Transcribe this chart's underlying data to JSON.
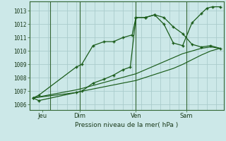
{
  "background_color": "#cce8e8",
  "grid_color": "#aacccc",
  "line_color": "#1a5c1a",
  "title": "Pression niveau de la mer( hPa )",
  "ylabel_ticks": [
    1006,
    1007,
    1008,
    1009,
    1010,
    1011,
    1012,
    1013
  ],
  "ylim": [
    1005.6,
    1013.7
  ],
  "xlim": [
    -0.2,
    10.2
  ],
  "day_labels": [
    "Jeu",
    "Dim",
    "Ven",
    "Sam"
  ],
  "day_positions": [
    0.5,
    2.5,
    5.5,
    8.2
  ],
  "day_vlines": [
    0.9,
    2.5,
    5.5,
    8.2
  ],
  "series1_x": [
    0.0,
    0.3,
    2.3,
    2.6,
    3.2,
    3.8,
    4.3,
    4.8,
    5.3,
    5.5,
    6.0,
    6.5,
    7.0,
    7.5,
    8.0,
    8.5,
    9.0,
    9.5,
    10.0
  ],
  "series1_y": [
    1006.5,
    1006.7,
    1008.8,
    1009.0,
    1010.4,
    1010.7,
    1010.7,
    1011.0,
    1011.2,
    1012.5,
    1012.5,
    1012.7,
    1012.5,
    1011.8,
    1011.3,
    1010.5,
    1010.3,
    1010.4,
    1010.2
  ],
  "series2_x": [
    0.0,
    0.3,
    2.3,
    2.6,
    3.2,
    3.8,
    4.3,
    4.8,
    5.2,
    5.5,
    6.0,
    6.5,
    7.0,
    7.5,
    8.0,
    8.5,
    9.0,
    9.3,
    9.6,
    10.0
  ],
  "series2_y": [
    1006.5,
    1006.3,
    1006.9,
    1007.0,
    1007.6,
    1007.9,
    1008.2,
    1008.6,
    1008.8,
    1012.5,
    1012.5,
    1012.7,
    1012.0,
    1010.6,
    1010.4,
    1012.1,
    1012.8,
    1013.2,
    1013.3,
    1013.3
  ],
  "series3_x": [
    0.0,
    2.3,
    2.6,
    5.5,
    7.5,
    8.0,
    9.0,
    9.5,
    10.0
  ],
  "series3_y": [
    1006.5,
    1007.1,
    1007.2,
    1008.3,
    1009.5,
    1009.8,
    1010.2,
    1010.3,
    1010.2
  ],
  "series4_x": [
    0.0,
    2.3,
    2.6,
    5.5,
    7.5,
    8.0,
    9.0,
    9.5,
    10.0
  ],
  "series4_y": [
    1006.5,
    1006.9,
    1007.0,
    1007.8,
    1008.7,
    1009.0,
    1009.7,
    1010.0,
    1010.2
  ]
}
